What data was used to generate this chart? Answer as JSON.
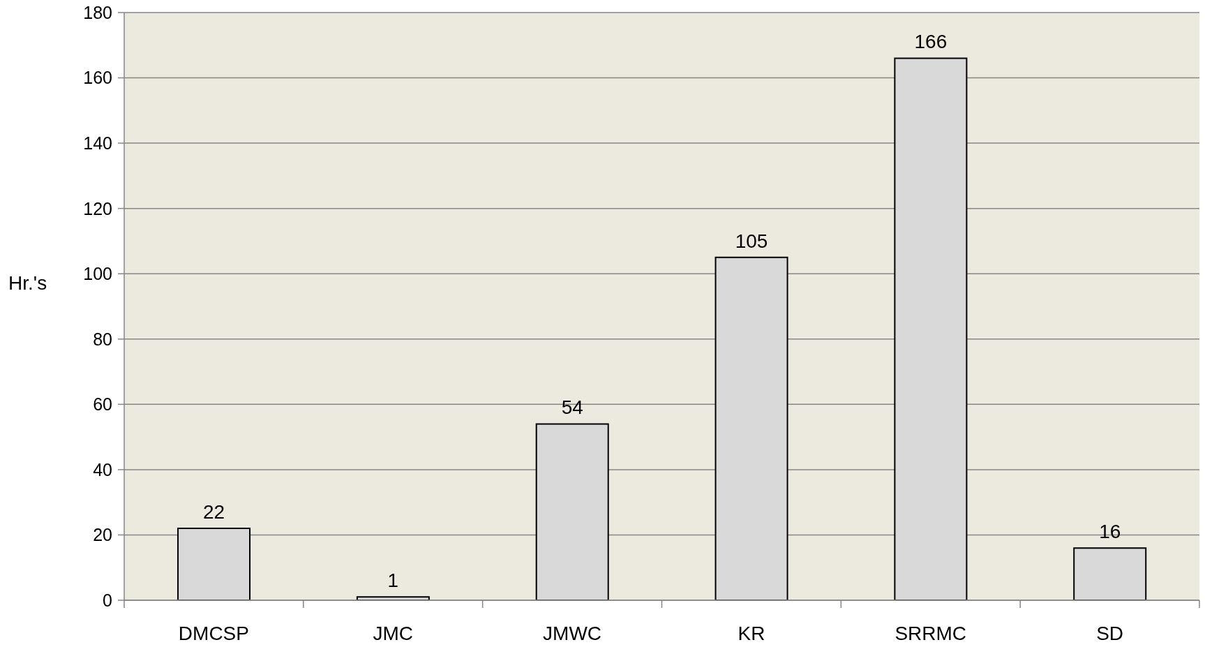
{
  "chart_data": {
    "type": "bar",
    "ylabel": "Hr.'s",
    "categories": [
      "DMCSP",
      "JMC",
      "JMWC",
      "KR",
      "SRRMC",
      "SD"
    ],
    "values": [
      22,
      1,
      54,
      105,
      166,
      16
    ],
    "color": "#d9d9d9",
    "ylim": [
      0,
      180
    ],
    "yticks": [
      0,
      20,
      40,
      60,
      80,
      100,
      120,
      140,
      160,
      180
    ],
    "grid": "y",
    "data_labels": true
  }
}
